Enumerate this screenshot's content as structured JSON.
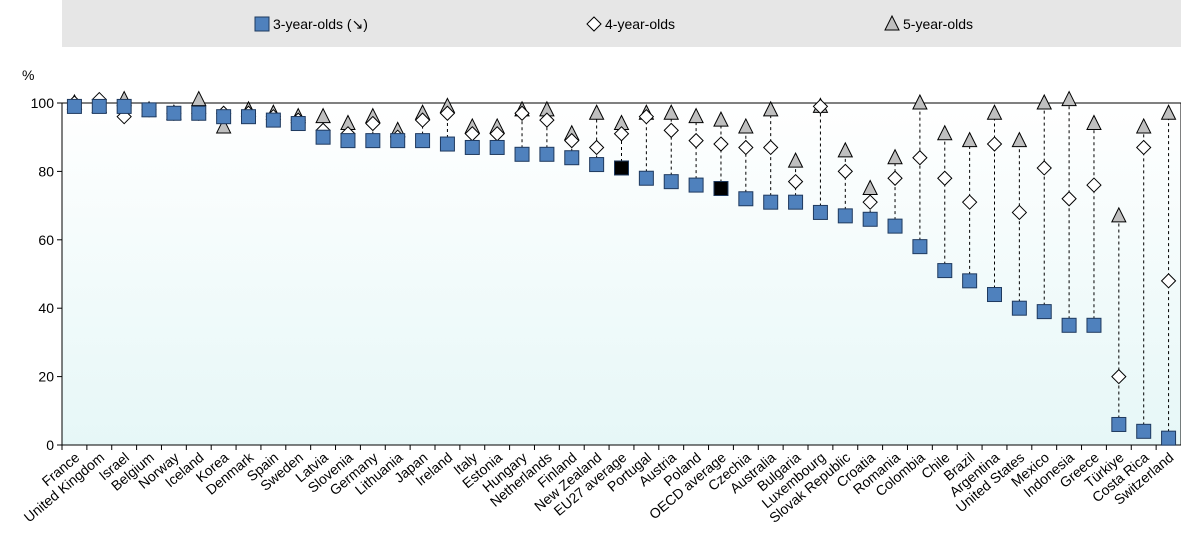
{
  "chart_data": {
    "type": "dot",
    "y_label": "%",
    "categories": [
      "France",
      "United Kingdom",
      "Israel",
      "Belgium",
      "Norway",
      "Iceland",
      "Korea",
      "Denmark",
      "Spain",
      "Sweden",
      "Latvia",
      "Slovenia",
      "Germany",
      "Lithuania",
      "Japan",
      "Ireland",
      "Italy",
      "Estonia",
      "Hungary",
      "Netherlands",
      "Finland",
      "New Zealand",
      "EU27 average",
      "Portugal",
      "Austria",
      "Poland",
      "OECD average",
      "Czechia",
      "Australia",
      "Bulgaria",
      "Luxembourg",
      "Slovak Republic",
      "Croatia",
      "Romania",
      "Colombia",
      "Chile",
      "Brazil",
      "Argentina",
      "United States",
      "Mexico",
      "Indonesia",
      "Greece",
      "Türkiye",
      "Costa Rica",
      "Switzerland"
    ],
    "series": [
      {
        "name": "3-year-olds (↘)",
        "color": "#4f81bd",
        "marker": "square",
        "values": [
          99,
          99,
          99,
          98,
          97,
          97,
          96,
          96,
          95,
          94,
          90,
          89,
          89,
          89,
          89,
          88,
          87,
          87,
          85,
          85,
          84,
          82,
          81,
          78,
          77,
          76,
          75,
          72,
          71,
          71,
          68,
          67,
          66,
          64,
          58,
          51,
          48,
          44,
          40,
          39,
          35,
          35,
          6,
          4,
          2
        ]
      },
      {
        "name": "4-year-olds",
        "color": "#ffffff",
        "marker": "diamond",
        "values": [
          100,
          101,
          96,
          98,
          97,
          97,
          97,
          97,
          96,
          95,
          92,
          91,
          94,
          90,
          95,
          97,
          91,
          91,
          97,
          95,
          89,
          87,
          91,
          96,
          92,
          89,
          88,
          87,
          87,
          77,
          99,
          80,
          71,
          78,
          84,
          78,
          71,
          88,
          68,
          81,
          72,
          76,
          20,
          87,
          48
        ]
      },
      {
        "name": "5-year-olds",
        "color": "#bfbfbf",
        "marker": "triangle",
        "values": [
          100,
          99,
          101,
          98,
          97,
          101,
          93,
          98,
          97,
          96,
          96,
          94,
          96,
          92,
          97,
          99,
          93,
          93,
          98,
          98,
          91,
          97,
          94,
          97,
          97,
          96,
          95,
          93,
          98,
          83,
          99,
          86,
          75,
          84,
          100,
          91,
          89,
          97,
          89,
          100,
          101,
          94,
          67,
          93,
          97
        ]
      }
    ],
    "highlight": {
      "indices": [
        22,
        26
      ],
      "color": "#000000"
    },
    "ylim": [
      0,
      100
    ],
    "yticks": [
      0,
      20,
      40,
      60,
      80,
      100
    ]
  }
}
